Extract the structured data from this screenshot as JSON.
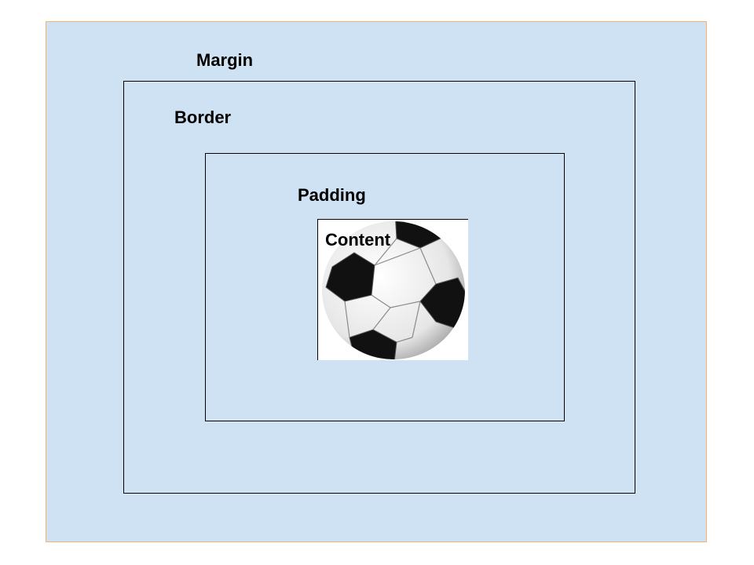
{
  "diagram": {
    "labels": {
      "margin": "Margin",
      "border": "Border",
      "padding": "Padding",
      "content": "Content"
    },
    "colors": {
      "margin_fill": "#cfe2f3",
      "margin_outline": "#f6b26b",
      "box_outline": "#000000",
      "content_fill": "#ffffff"
    },
    "content_image": "soccer-ball-icon"
  }
}
